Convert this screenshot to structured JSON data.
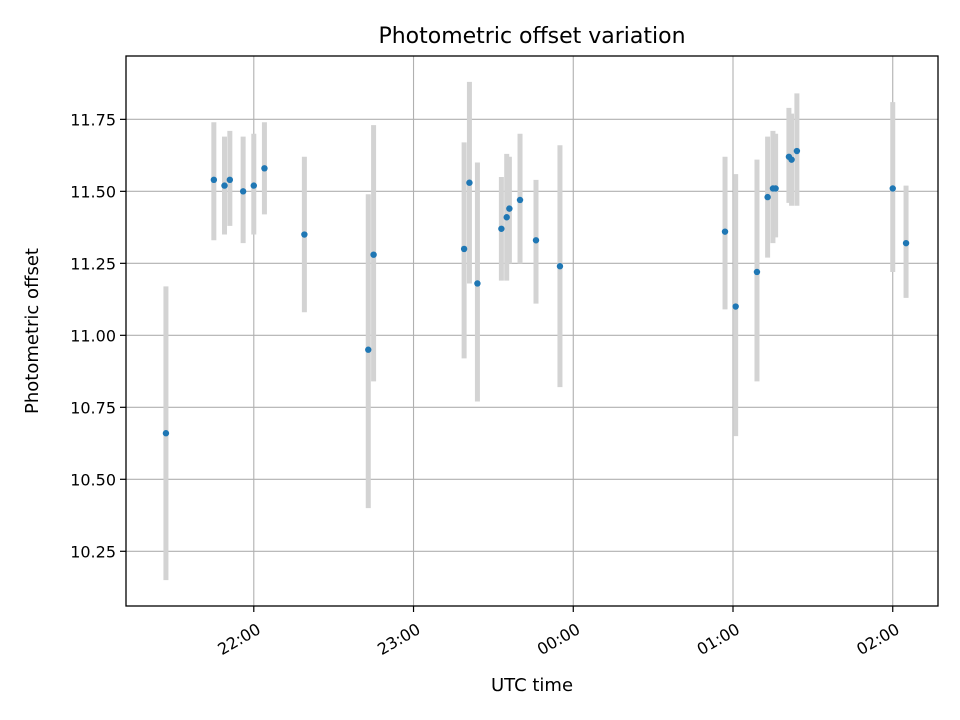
{
  "chart_data": {
    "type": "scatter",
    "title": "Photometric offset variation",
    "xlabel": "UTC time",
    "ylabel": "Photometric offset",
    "x_axis_type": "time",
    "xlim": [
      "21:12",
      "02:17"
    ],
    "ylim": [
      10.06,
      11.97
    ],
    "x_ticks": [
      "22:00",
      "23:00",
      "00:00",
      "01:00",
      "02:00"
    ],
    "y_ticks": [
      10.25,
      10.5,
      10.75,
      11.0,
      11.25,
      11.5,
      11.75
    ],
    "y_tick_labels": [
      "10.25",
      "10.50",
      "10.75",
      "11.00",
      "11.25",
      "11.50",
      "11.75"
    ],
    "grid": true,
    "colors": {
      "points": "#1f77b4",
      "error_bars": "#d3d3d3",
      "grid": "#b0b0b0"
    },
    "series": [
      {
        "points": [
          {
            "x": "21:27",
            "y": 10.66,
            "ylow": 10.15,
            "yhigh": 11.17
          },
          {
            "x": "21:45",
            "y": 11.54,
            "ylow": 11.33,
            "yhigh": 11.74
          },
          {
            "x": "21:49",
            "y": 11.52,
            "ylow": 11.35,
            "yhigh": 11.69
          },
          {
            "x": "21:51",
            "y": 11.54,
            "ylow": 11.38,
            "yhigh": 11.71
          },
          {
            "x": "21:56",
            "y": 11.5,
            "ylow": 11.32,
            "yhigh": 11.69
          },
          {
            "x": "22:00",
            "y": 11.52,
            "ylow": 11.35,
            "yhigh": 11.7
          },
          {
            "x": "22:04",
            "y": 11.58,
            "ylow": 11.42,
            "yhigh": 11.74
          },
          {
            "x": "22:19",
            "y": 11.35,
            "ylow": 11.08,
            "yhigh": 11.62
          },
          {
            "x": "22:43",
            "y": 10.95,
            "ylow": 10.4,
            "yhigh": 11.49
          },
          {
            "x": "22:45",
            "y": 11.28,
            "ylow": 10.84,
            "yhigh": 11.73
          },
          {
            "x": "23:19",
            "y": 11.3,
            "ylow": 10.92,
            "yhigh": 11.67
          },
          {
            "x": "23:21",
            "y": 11.53,
            "ylow": 11.18,
            "yhigh": 11.88
          },
          {
            "x": "23:24",
            "y": 11.18,
            "ylow": 10.77,
            "yhigh": 11.6
          },
          {
            "x": "23:33",
            "y": 11.37,
            "ylow": 11.19,
            "yhigh": 11.55
          },
          {
            "x": "23:35",
            "y": 11.41,
            "ylow": 11.19,
            "yhigh": 11.63
          },
          {
            "x": "23:36",
            "y": 11.44,
            "ylow": 11.25,
            "yhigh": 11.62
          },
          {
            "x": "23:40",
            "y": 11.47,
            "ylow": 11.25,
            "yhigh": 11.7
          },
          {
            "x": "23:46",
            "y": 11.33,
            "ylow": 11.11,
            "yhigh": 11.54
          },
          {
            "x": "23:55",
            "y": 11.24,
            "ylow": 10.82,
            "yhigh": 11.66
          },
          {
            "x": "00:57",
            "y": 11.36,
            "ylow": 11.09,
            "yhigh": 11.62
          },
          {
            "x": "01:01",
            "y": 11.1,
            "ylow": 10.65,
            "yhigh": 11.56
          },
          {
            "x": "01:09",
            "y": 11.22,
            "ylow": 10.84,
            "yhigh": 11.61
          },
          {
            "x": "01:13",
            "y": 11.48,
            "ylow": 11.27,
            "yhigh": 11.69
          },
          {
            "x": "01:15",
            "y": 11.51,
            "ylow": 11.32,
            "yhigh": 11.71
          },
          {
            "x": "01:16",
            "y": 11.51,
            "ylow": 11.34,
            "yhigh": 11.7
          },
          {
            "x": "01:21",
            "y": 11.62,
            "ylow": 11.46,
            "yhigh": 11.79
          },
          {
            "x": "01:22",
            "y": 11.61,
            "ylow": 11.45,
            "yhigh": 11.77
          },
          {
            "x": "01:24",
            "y": 11.64,
            "ylow": 11.45,
            "yhigh": 11.84
          },
          {
            "x": "02:00",
            "y": 11.51,
            "ylow": 11.22,
            "yhigh": 11.81
          },
          {
            "x": "02:05",
            "y": 11.32,
            "ylow": 11.13,
            "yhigh": 11.52
          }
        ]
      }
    ]
  }
}
